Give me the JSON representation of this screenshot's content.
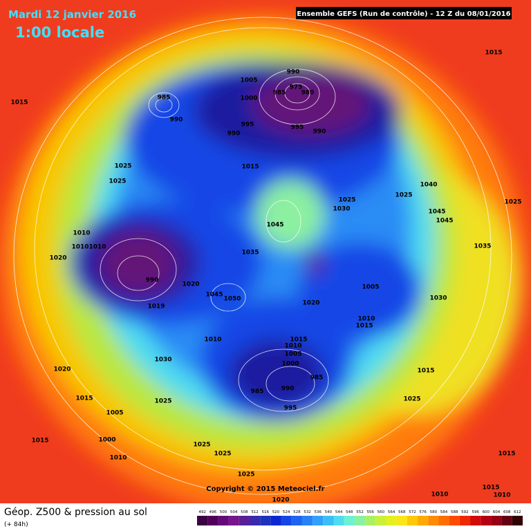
{
  "header": {
    "date": "Mardi 12 janvier 2016",
    "time": "1:00 locale",
    "run": "Ensemble GEFS  (Run de contrôle)  - 12 Z du 08/01/2016"
  },
  "map": {
    "copyright": "Copyright © 2015 Meteociel.fr",
    "pressure_labels": [
      "1015",
      "1015",
      "990",
      "975",
      "980",
      "985",
      "1005",
      "1000",
      "985",
      "990",
      "995",
      "990",
      "995",
      "990",
      "1025",
      "1025",
      "1015",
      "1040",
      "1025",
      "1030",
      "1025",
      "1045",
      "1045",
      "1025",
      "1010",
      "1010",
      "1010",
      "1020",
      "1045",
      "1035",
      "1035",
      "990",
      "1020",
      "1019",
      "1045",
      "1050",
      "1005",
      "1030",
      "1020",
      "1010",
      "1015",
      "1010",
      "1015",
      "1010",
      "1005",
      "1000",
      "985",
      "990",
      "985",
      "995",
      "1030",
      "1020",
      "1015",
      "1025",
      "1005",
      "1000",
      "1015",
      "1010",
      "1025",
      "1025",
      "1025",
      "1020",
      "1015",
      "1025",
      "1015",
      "1010",
      "1015",
      "1010"
    ]
  },
  "footer": {
    "title": "Géop. Z500 & pression au sol",
    "lead": "(+ 84h)",
    "colorbar": {
      "levels": [
        492,
        496,
        500,
        504,
        508,
        512,
        516,
        520,
        524,
        528,
        532,
        536,
        540,
        544,
        548,
        552,
        556,
        560,
        564,
        568,
        572,
        576,
        580,
        584,
        588,
        592,
        596,
        600,
        604,
        608,
        612
      ],
      "colors": [
        "#3c0046",
        "#50005a",
        "#640a78",
        "#78148c",
        "#5a1e96",
        "#3c28aa",
        "#1e32be",
        "#0a28d2",
        "#1446e6",
        "#1e64f0",
        "#2882f5",
        "#32a0fa",
        "#3cbef5",
        "#50dcf0",
        "#6ef0d2",
        "#8cf0a0",
        "#aaf064",
        "#c8f03c",
        "#e6f01e",
        "#fae614",
        "#ffc80a",
        "#ffaa00",
        "#ff8c00",
        "#ff6e00",
        "#ff4b00",
        "#f02800",
        "#d20a0a",
        "#b40014",
        "#960014",
        "#640014",
        "#320000"
      ]
    }
  }
}
